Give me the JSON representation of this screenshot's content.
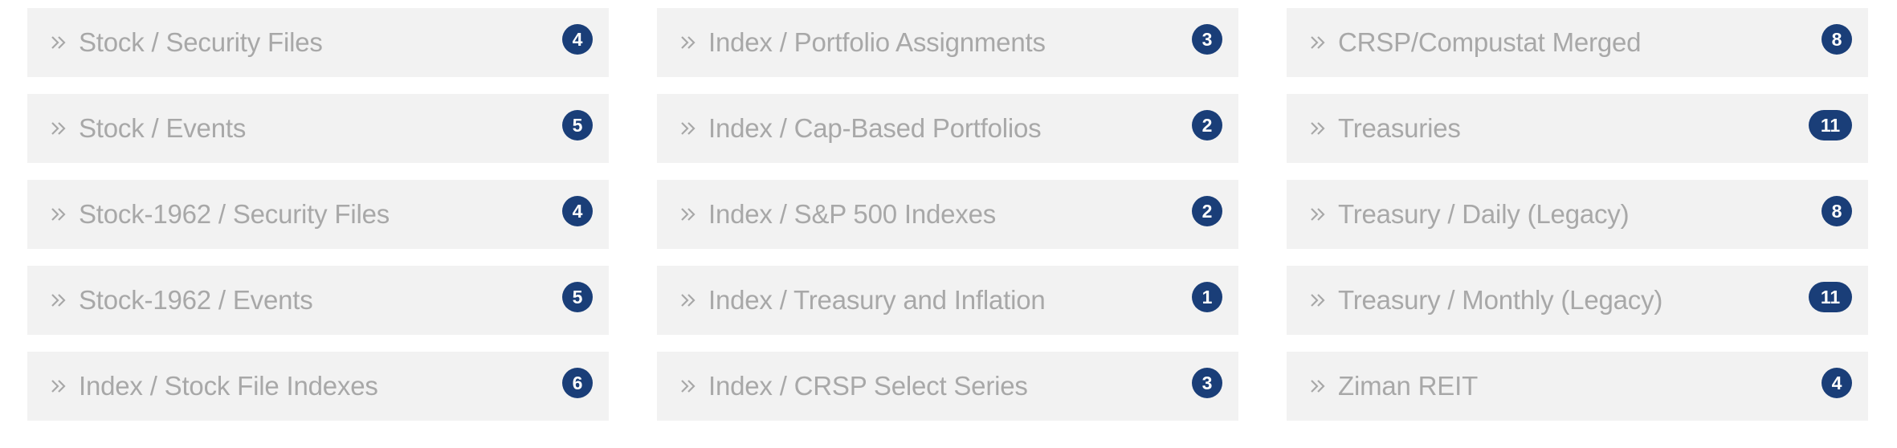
{
  "colors": {
    "tile_bg": "#f2f2f2",
    "label": "#a8a8a8",
    "badge_bg": "#1a3e78",
    "badge_text": "#ffffff"
  },
  "icon": "double-chevron-right-icon",
  "tiles": [
    {
      "label": "Stock / Security Files",
      "count": "4"
    },
    {
      "label": "Index / Portfolio Assignments",
      "count": "3"
    },
    {
      "label": "CRSP/Compustat Merged",
      "count": "8"
    },
    {
      "label": "Stock / Events",
      "count": "5"
    },
    {
      "label": "Index / Cap-Based Portfolios",
      "count": "2"
    },
    {
      "label": "Treasuries",
      "count": "11"
    },
    {
      "label": "Stock-1962 / Security Files",
      "count": "4"
    },
    {
      "label": "Index / S&P 500 Indexes",
      "count": "2"
    },
    {
      "label": "Treasury / Daily (Legacy)",
      "count": "8"
    },
    {
      "label": "Stock-1962 / Events",
      "count": "5"
    },
    {
      "label": "Index / Treasury and Inflation",
      "count": "1"
    },
    {
      "label": "Treasury / Monthly (Legacy)",
      "count": "11"
    },
    {
      "label": "Index / Stock File Indexes",
      "count": "6"
    },
    {
      "label": "Index / CRSP Select Series",
      "count": "3"
    },
    {
      "label": "Ziman REIT",
      "count": "4"
    }
  ]
}
